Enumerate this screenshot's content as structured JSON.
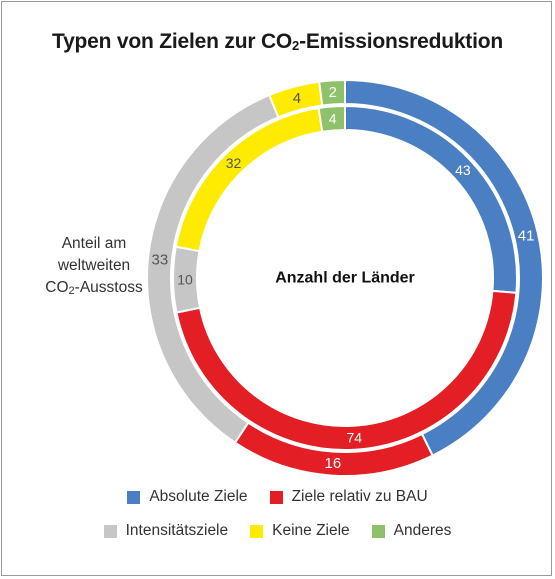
{
  "title": {
    "text_before_sub": "Typen von Zielen zur CO",
    "sub": "2",
    "text_after_sub": "-Emissionsreduktion"
  },
  "outer_ring_label": {
    "line1": "Anteil am",
    "line2": "weltweiten",
    "line3_before_sub": "CO",
    "line3_sub": "2",
    "line3_after_sub": "-Ausstoss"
  },
  "inner_ring_label": "Anzahl der Länder",
  "chart_data": {
    "type": "pie",
    "variant": "double-ring donut",
    "title": "Typen von Zielen zur CO2-Emissionsreduktion",
    "categories": [
      "Absolute Ziele",
      "Ziele relativ zu BAU",
      "Intensitätsziele",
      "Keine Ziele",
      "Anderes"
    ],
    "colors": [
      "#4a7fc4",
      "#e31e25",
      "#c6c6c6",
      "#ffeb00",
      "#8dc26a"
    ],
    "series": [
      {
        "name": "Anzahl der Länder",
        "ring": "inner",
        "values": [
          43,
          74,
          10,
          32,
          4
        ]
      },
      {
        "name": "Anteil am weltweiten CO2-Ausstoss",
        "ring": "outer",
        "values": [
          41,
          16,
          33,
          4,
          2
        ]
      }
    ],
    "legend_position": "bottom"
  },
  "legend": [
    {
      "label": "Absolute Ziele",
      "color": "#4a7fc4",
      "row": 0
    },
    {
      "label": "Ziele relativ zu BAU",
      "color": "#e31e25",
      "row": 0
    },
    {
      "label": "Intensitätsziele",
      "color": "#c6c6c6",
      "row": 1
    },
    {
      "label": "Keine Ziele",
      "color": "#ffeb00",
      "row": 1
    },
    {
      "label": "Anderes",
      "color": "#8dc26a",
      "row": 1
    }
  ]
}
